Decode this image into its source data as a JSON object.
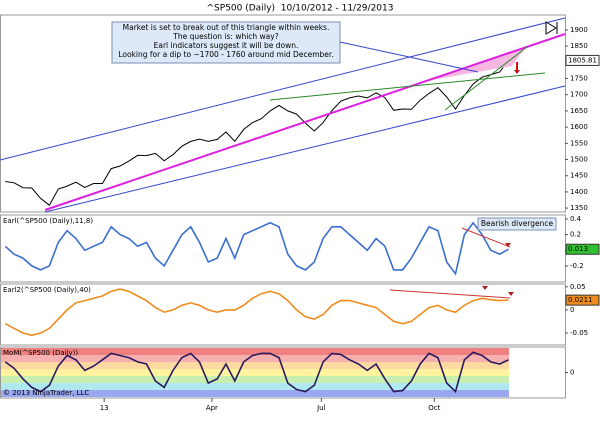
{
  "title": "^SP500 (Daily)  10/10/2012 - 11/29/2013",
  "annotation": [
    "Market is set to break out of this triangle within weeks.",
    "The question is: which way?",
    "Earl indicators suggest it will be down.",
    "Looking for a dip to ~1700 - 1760 around mid December."
  ],
  "note": "Bearish divergence",
  "copyright": "© 2013 NinjaTrader, LLC",
  "chart_data": [
    {
      "type": "line",
      "color": "#000000",
      "xlim": [
        -3,
        317
      ],
      "ylim": [
        1338,
        1946
      ],
      "yticks": [
        1350,
        1400,
        1450,
        1500,
        1550,
        1600,
        1650,
        1700,
        1750,
        1800,
        1850,
        1900
      ],
      "x": [
        0,
        5,
        10,
        15,
        20,
        25,
        30,
        35,
        40,
        45,
        50,
        55,
        60,
        65,
        70,
        75,
        80,
        85,
        90,
        95,
        100,
        105,
        110,
        115,
        120,
        125,
        130,
        135,
        140,
        145,
        150,
        155,
        160,
        165,
        170,
        175,
        180,
        185,
        190,
        195,
        200,
        205,
        210,
        215,
        220,
        225,
        230,
        235,
        240,
        245,
        250,
        255,
        260,
        265,
        270,
        275,
        280,
        285
      ],
      "values": [
        1432,
        1428,
        1413,
        1412,
        1380,
        1359,
        1409,
        1418,
        1430,
        1414,
        1426,
        1426,
        1472,
        1480,
        1495,
        1513,
        1512,
        1519,
        1496,
        1515,
        1541,
        1556,
        1563,
        1556,
        1562,
        1585,
        1556,
        1593,
        1614,
        1626,
        1650,
        1667,
        1650,
        1640,
        1612,
        1588,
        1614,
        1651,
        1680,
        1690,
        1696,
        1690,
        1706,
        1691,
        1652,
        1656,
        1655,
        1683,
        1704,
        1722,
        1693,
        1656,
        1698,
        1733,
        1754,
        1762,
        1770,
        1805.81
      ]
    },
    {
      "type": "line",
      "title": "Earl(^SP500 (Daily),11,8)",
      "color": "#3a6fd0",
      "xlim": [
        -3,
        317
      ],
      "ylim": [
        -0.405,
        0.45
      ],
      "yticks": [
        -0.2,
        0,
        0.2,
        0.4
      ],
      "x": [
        0,
        5,
        10,
        15,
        20,
        25,
        30,
        35,
        40,
        45,
        50,
        55,
        60,
        65,
        70,
        75,
        80,
        85,
        90,
        95,
        100,
        105,
        110,
        115,
        120,
        125,
        130,
        135,
        140,
        145,
        150,
        155,
        160,
        165,
        170,
        175,
        180,
        185,
        190,
        195,
        200,
        205,
        210,
        215,
        220,
        225,
        230,
        235,
        240,
        245,
        250,
        255,
        260,
        265,
        270,
        275,
        280,
        285
      ],
      "values": [
        0.05,
        -0.05,
        -0.1,
        -0.2,
        -0.25,
        -0.2,
        0.1,
        0.25,
        0.15,
        0,
        0.05,
        0.1,
        0.3,
        0.2,
        0.15,
        0.05,
        0.1,
        -0.1,
        -0.2,
        0,
        0.2,
        0.3,
        0.1,
        -0.15,
        -0.1,
        0.15,
        -0.1,
        0.2,
        0.25,
        0.3,
        0.35,
        0.3,
        -0.05,
        -0.2,
        -0.25,
        -0.15,
        0.15,
        0.3,
        0.3,
        0.2,
        0.1,
        0,
        0.15,
        0.05,
        -0.25,
        -0.25,
        -0.1,
        0.1,
        0.3,
        0.25,
        -0.15,
        -0.3,
        0.2,
        0.35,
        0.2,
        0,
        -0.05,
        0.013
      ]
    },
    {
      "type": "line",
      "title": "Earl2(^SP500 (Daily),40)",
      "color": "#f08c1e",
      "xlim": [
        -3,
        317
      ],
      "ylim": [
        -0.076,
        0.056
      ],
      "yticks": [
        -0.05,
        0,
        0.05
      ],
      "x": [
        0,
        5,
        10,
        15,
        20,
        25,
        30,
        35,
        40,
        45,
        50,
        55,
        60,
        65,
        70,
        75,
        80,
        85,
        90,
        95,
        100,
        105,
        110,
        115,
        120,
        125,
        130,
        135,
        140,
        145,
        150,
        155,
        160,
        165,
        170,
        175,
        180,
        185,
        190,
        195,
        200,
        205,
        210,
        215,
        220,
        225,
        230,
        235,
        240,
        245,
        250,
        255,
        260,
        265,
        270,
        275,
        280,
        285
      ],
      "values": [
        -0.03,
        -0.04,
        -0.05,
        -0.055,
        -0.05,
        -0.04,
        -0.02,
        0,
        0.015,
        0.02,
        0.025,
        0.03,
        0.04,
        0.045,
        0.04,
        0.03,
        0.02,
        0.005,
        -0.005,
        0,
        0.01,
        0.015,
        0.01,
        0,
        -0.005,
        0,
        0,
        0.01,
        0.025,
        0.035,
        0.04,
        0.035,
        0.02,
        0,
        -0.015,
        -0.02,
        -0.01,
        0.01,
        0.02,
        0.02,
        0.015,
        0.01,
        0.005,
        -0.01,
        -0.025,
        -0.03,
        -0.025,
        -0.01,
        0.005,
        0.01,
        0,
        -0.005,
        0.01,
        0.02,
        0.025,
        0.022,
        0.02,
        0.0211
      ]
    },
    {
      "type": "line",
      "title": "MoM(^SP500 (Daily))",
      "color": "#2a1a5e",
      "xlim": [
        -3,
        317
      ],
      "ylim": [
        -1.2,
        1.2
      ],
      "yticks": [
        0
      ],
      "xticks": [
        {
          "value": 56,
          "label": "13"
        },
        {
          "value": 117,
          "label": "Apr"
        },
        {
          "value": 179,
          "label": "Jul"
        },
        {
          "value": 243,
          "label": "Oct"
        }
      ],
      "x": [
        0,
        5,
        10,
        15,
        20,
        25,
        30,
        35,
        40,
        45,
        50,
        55,
        60,
        65,
        70,
        75,
        80,
        85,
        90,
        95,
        100,
        105,
        110,
        115,
        120,
        125,
        130,
        135,
        140,
        145,
        150,
        155,
        160,
        165,
        170,
        175,
        180,
        185,
        190,
        195,
        200,
        205,
        210,
        215,
        220,
        225,
        230,
        235,
        240,
        245,
        250,
        255,
        260,
        265,
        270,
        275,
        280,
        285
      ],
      "values": [
        0.5,
        0.2,
        -0.3,
        -0.7,
        -0.9,
        -0.6,
        0.3,
        0.8,
        0.6,
        0.1,
        0.3,
        0.6,
        0.9,
        0.8,
        0.7,
        0.5,
        0.4,
        -0.4,
        -0.7,
        0.1,
        0.7,
        0.9,
        0.5,
        -0.5,
        -0.3,
        0.4,
        -0.4,
        0.5,
        0.8,
        0.9,
        0.9,
        0.7,
        -0.5,
        -0.8,
        -0.9,
        -0.6,
        0.5,
        0.9,
        0.85,
        0.6,
        0.4,
        0.1,
        0.4,
        -0.3,
        -0.9,
        -0.85,
        -0.4,
        0.4,
        0.9,
        0.7,
        -0.5,
        -0.9,
        0.6,
        0.95,
        0.8,
        0.5,
        0.4,
        0.6
      ]
    }
  ]
}
